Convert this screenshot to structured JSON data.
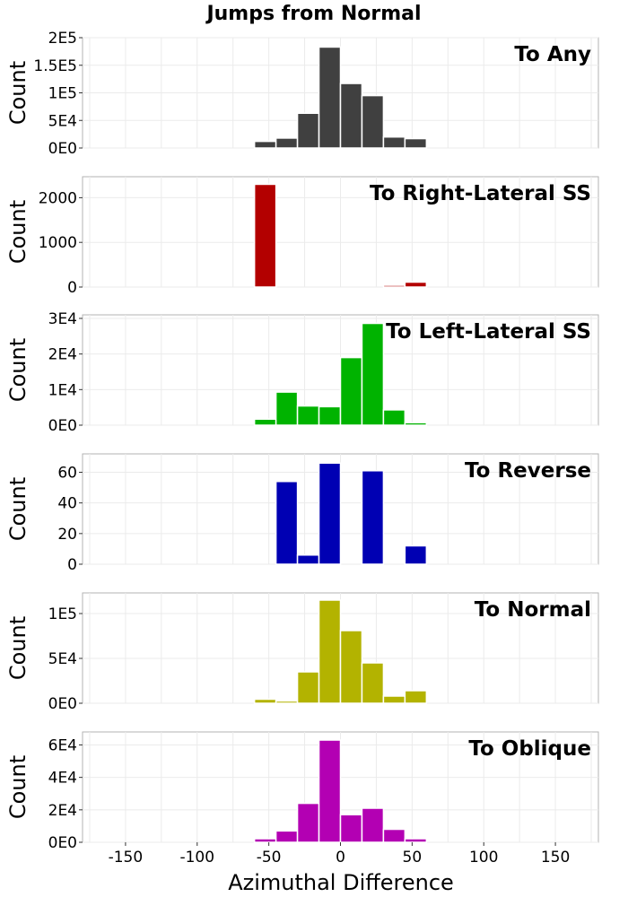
{
  "chart_data": {
    "type": "bar",
    "title": "Jumps from Normal",
    "xlabel": "Azimuthal Difference",
    "xlim": [
      -180,
      180
    ],
    "x_ticks": [
      -150,
      -100,
      -50,
      0,
      50,
      100,
      150
    ],
    "x_tick_labels": [
      "-150",
      "-100",
      "-50",
      "0",
      "50",
      "100",
      "150"
    ],
    "bin_width": 15,
    "bin_centers": [
      -52.5,
      -37.5,
      -22.5,
      -7.5,
      7.5,
      22.5,
      37.5,
      52.5
    ],
    "grid": true,
    "panels": [
      {
        "annotation": "To Any",
        "ylabel": "Count",
        "color": "#404040",
        "ylim": [
          0,
          200000
        ],
        "y_ticks": [
          0,
          50000,
          100000,
          150000,
          200000
        ],
        "y_tick_labels": [
          "0E0",
          "5E4",
          "1E5",
          "1.5E5",
          "2E5"
        ],
        "values": [
          12000,
          18000,
          63000,
          183000,
          117000,
          95000,
          20000,
          17000
        ]
      },
      {
        "annotation": "To Right-Lateral SS",
        "ylabel": "Count",
        "color": "#b30000",
        "ylim": [
          0,
          2470
        ],
        "y_ticks": [
          0,
          1000,
          2000
        ],
        "y_tick_labels": [
          "0",
          "1000",
          "2000"
        ],
        "values": [
          2300,
          0,
          0,
          0,
          0,
          0,
          40,
          110
        ]
      },
      {
        "annotation": "To Left-Lateral SS",
        "ylabel": "Count",
        "color": "#00b300",
        "ylim": [
          0,
          31000
        ],
        "y_ticks": [
          0,
          10000,
          20000,
          30000
        ],
        "y_tick_labels": [
          "0E0",
          "1E4",
          "2E4",
          "3E4"
        ],
        "values": [
          1700,
          9300,
          5400,
          5200,
          19000,
          28600,
          4300,
          700
        ]
      },
      {
        "annotation": "To Reverse",
        "ylabel": "Count",
        "color": "#0000b3",
        "ylim": [
          0,
          72
        ],
        "y_ticks": [
          0,
          20,
          40,
          60
        ],
        "y_tick_labels": [
          "0",
          "20",
          "40",
          "60"
        ],
        "values": [
          0,
          54,
          6,
          66,
          0,
          61,
          0,
          12
        ]
      },
      {
        "annotation": "To Normal",
        "ylabel": "Count",
        "color": "#b3b300",
        "ylim": [
          0,
          123000
        ],
        "y_ticks": [
          0,
          50000,
          100000
        ],
        "y_tick_labels": [
          "0E0",
          "5E4",
          "1E5"
        ],
        "values": [
          4500,
          2500,
          35000,
          115000,
          81000,
          45000,
          8000,
          14000
        ]
      },
      {
        "annotation": "To Oblique",
        "ylabel": "Count",
        "color": "#b300b3",
        "ylim": [
          0,
          68000
        ],
        "y_ticks": [
          0,
          20000,
          40000,
          60000
        ],
        "y_tick_labels": [
          "0E0",
          "2E4",
          "4E4",
          "6E4"
        ],
        "values": [
          2200,
          7000,
          24000,
          63000,
          17000,
          21000,
          8000,
          2200
        ]
      }
    ]
  }
}
